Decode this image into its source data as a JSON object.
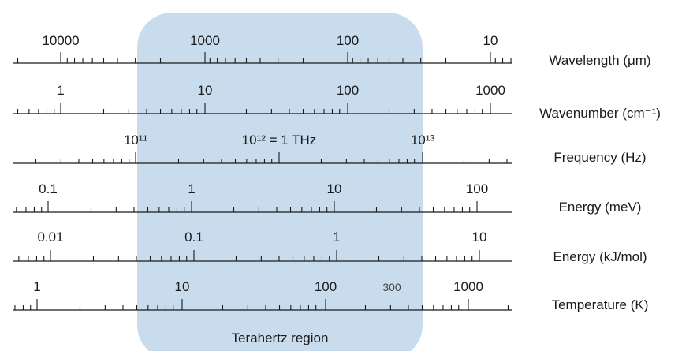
{
  "region": {
    "label": "Terahertz region",
    "fill": "#c9dcee"
  },
  "scales": [
    {
      "id": "wavelength",
      "title": "Wavelength (μm)",
      "labels": [
        "10000",
        "1000",
        "100",
        "10"
      ],
      "decade_direction": "decreasing"
    },
    {
      "id": "wavenumber",
      "title": "Wavenumber (cm⁻¹)",
      "labels": [
        "1",
        "10",
        "100",
        "1000"
      ],
      "decade_direction": "increasing"
    },
    {
      "id": "frequency",
      "title": "Frequency (Hz)",
      "labels": [
        "10¹¹",
        "10¹² = 1 THz",
        "10¹³"
      ],
      "decade_direction": "increasing"
    },
    {
      "id": "energy-mev",
      "title": "Energy (meV)",
      "labels": [
        "0.1",
        "1",
        "10",
        "100"
      ],
      "decade_direction": "increasing"
    },
    {
      "id": "energy-kjmol",
      "title": "Energy (kJ/mol)",
      "labels": [
        "0.01",
        "0.1",
        "1",
        "10"
      ],
      "decade_direction": "increasing"
    },
    {
      "id": "temperature",
      "title": "Temperature (K)",
      "labels": [
        "1",
        "10",
        "100",
        "1000"
      ],
      "extra_label": "300",
      "decade_direction": "increasing"
    }
  ]
}
